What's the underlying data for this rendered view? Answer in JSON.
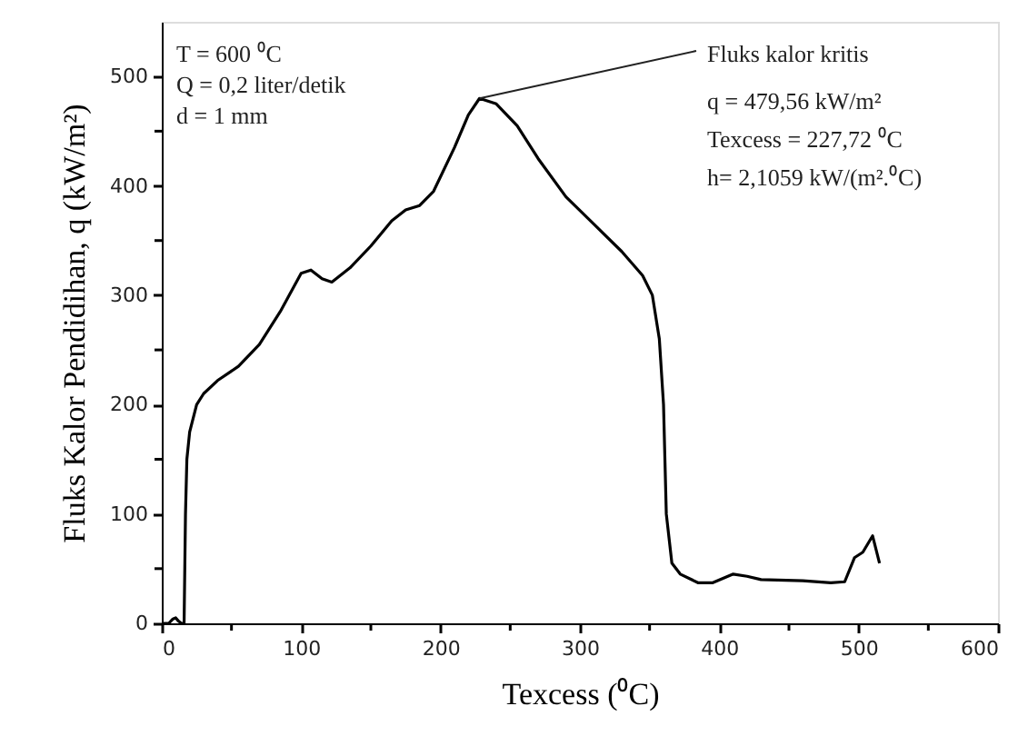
{
  "chart_data": {
    "type": "line",
    "xlabel": "Texcess (⁰C)",
    "ylabel": "Fluks Kalor Pendidihan, q (kW/m²)",
    "x": [
      0,
      5,
      8,
      10,
      12,
      14,
      16,
      17,
      18,
      20,
      25,
      30,
      40,
      55,
      70,
      85,
      100,
      107,
      115,
      122,
      135,
      150,
      165,
      175,
      185,
      195,
      210,
      220,
      228,
      240,
      255,
      270,
      290,
      310,
      330,
      345,
      352,
      357,
      360,
      362,
      366,
      372,
      385,
      395,
      410,
      420,
      430,
      460,
      480,
      490,
      497,
      503,
      510,
      515
    ],
    "series": [
      {
        "color": "#000000",
        "values": [
          0,
          0,
          4,
          5,
          2,
          0,
          0,
          100,
          150,
          175,
          200,
          210,
          222,
          235,
          255,
          285,
          320,
          323,
          315,
          312,
          325,
          345,
          368,
          378,
          382,
          395,
          435,
          465,
          480,
          475,
          455,
          425,
          390,
          365,
          340,
          318,
          300,
          260,
          200,
          100,
          55,
          45,
          37,
          37,
          45,
          43,
          40,
          39,
          37,
          38,
          60,
          65,
          80,
          55
        ]
      }
    ],
    "xlim": [
      0,
      600
    ],
    "ylim": [
      0,
      550
    ],
    "xticks": [
      0,
      {
        "value": 50,
        "label": null
      },
      100,
      {
        "value": 150,
        "label": null
      },
      200,
      {
        "value": 250,
        "label": null
      },
      300,
      {
        "value": 350,
        "label": null
      },
      400,
      {
        "value": 450,
        "label": null
      },
      500,
      {
        "value": 550,
        "label": null
      },
      600
    ],
    "yticks": [
      0,
      {
        "value": 50,
        "label": null
      },
      100,
      {
        "value": 150,
        "label": null
      },
      200,
      {
        "value": 250,
        "label": null
      },
      300,
      {
        "value": 350,
        "label": null
      },
      400,
      {
        "value": 450,
        "label": null
      },
      500
    ],
    "grid": false,
    "marker": "none",
    "line_style": "solid",
    "annotations": [
      {
        "text": "Fluks kalor kritis",
        "x": 228,
        "y": 480
      },
      "T = 600 ⁰C",
      "Q = 0,2 liter/detik",
      "d  = 1 mm",
      "q = 479,56 kW/m²",
      "Texcess = 227,72 ⁰C",
      "h= 2,1059 kW/(m².⁰C)"
    ]
  }
}
